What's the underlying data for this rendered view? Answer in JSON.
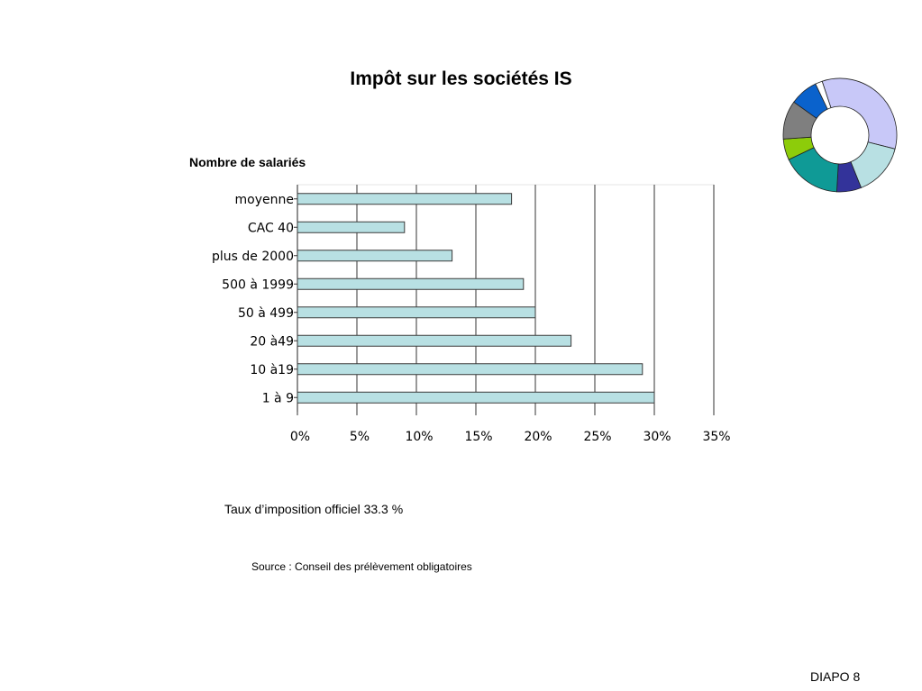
{
  "slide": {
    "title": "Impôt sur les sociétés IS",
    "note": "Taux d’imposition officiel 33.3 %",
    "source": "Source : Conseil des prélèvement obligatoires",
    "footer": "DIAPO 8"
  },
  "chart_data": {
    "type": "bar",
    "orientation": "horizontal",
    "title": "Nombre de salariés",
    "categories": [
      "moyenne",
      "CAC 40",
      "plus de 2000",
      "500 à 1999",
      "50 à 499",
      "20 à49",
      "10 à19",
      "1 à 9"
    ],
    "values": [
      18,
      9,
      13,
      19,
      20,
      23,
      29,
      30
    ],
    "xlim": [
      0,
      35
    ],
    "xticks": [
      "0%",
      "5%",
      "10%",
      "15%",
      "20%",
      "25%",
      "30%",
      "35%"
    ],
    "grid": "vertical",
    "bar_color": "#b8e0e3"
  },
  "logo": {
    "type": "donut",
    "segments": [
      {
        "color": "#c8c8f8",
        "value": 34
      },
      {
        "color": "#b8e0e3",
        "value": 15
      },
      {
        "color": "#33339a",
        "value": 7
      },
      {
        "color": "#0f9a96",
        "value": 17
      },
      {
        "color": "#8dcc0a",
        "value": 6
      },
      {
        "color": "#7f7f7f",
        "value": 11
      },
      {
        "color": "#0a62cc",
        "value": 8
      },
      {
        "color": "#ffffff",
        "value": 2
      }
    ]
  }
}
